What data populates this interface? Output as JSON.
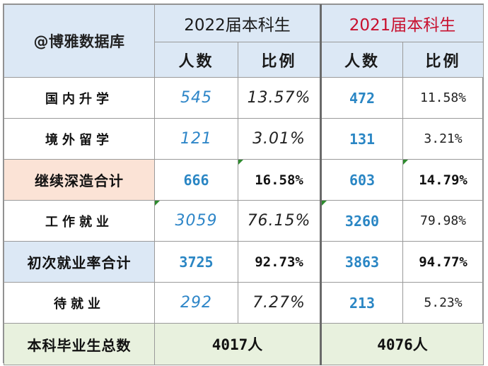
{
  "header": {
    "watermark": "@博雅数据库",
    "year_2022": "2022届本科生",
    "year_2021": "2021届本科生",
    "col_count": "人数",
    "col_ratio": "比例"
  },
  "rows": [
    {
      "label": "国内升学",
      "c2022": "545",
      "r2022": "13.57%",
      "c2021": "472",
      "r2021": "11.58%"
    },
    {
      "label": "境外留学",
      "c2022": "121",
      "r2022": "3.01%",
      "c2021": "131",
      "r2021": "3.21%"
    },
    {
      "label": "继续深造合计",
      "c2022": "666",
      "r2022": "16.58%",
      "c2021": "603",
      "r2021": "14.79%"
    },
    {
      "label": "工作就业",
      "c2022": "3059",
      "r2022": "76.15%",
      "c2021": "3260",
      "r2021": "79.98%"
    },
    {
      "label": "初次就业率合计",
      "c2022": "3725",
      "r2022": "92.73%",
      "c2021": "3863",
      "r2021": "94.77%"
    },
    {
      "label": "待就业",
      "c2022": "292",
      "r2022": "7.27%",
      "c2021": "213",
      "r2021": "5.23%"
    }
  ],
  "total": {
    "label": "本科毕业生总数",
    "v2022": "4017人",
    "v2021": "4076人"
  },
  "colors": {
    "header_bg": "#dce8f5",
    "peach_row": "#fbe3d6",
    "blue_row": "#dce8f5",
    "green_row": "#e8f1de",
    "number_blue": "#2a86c4",
    "year_2021_red": "#c8102e"
  }
}
